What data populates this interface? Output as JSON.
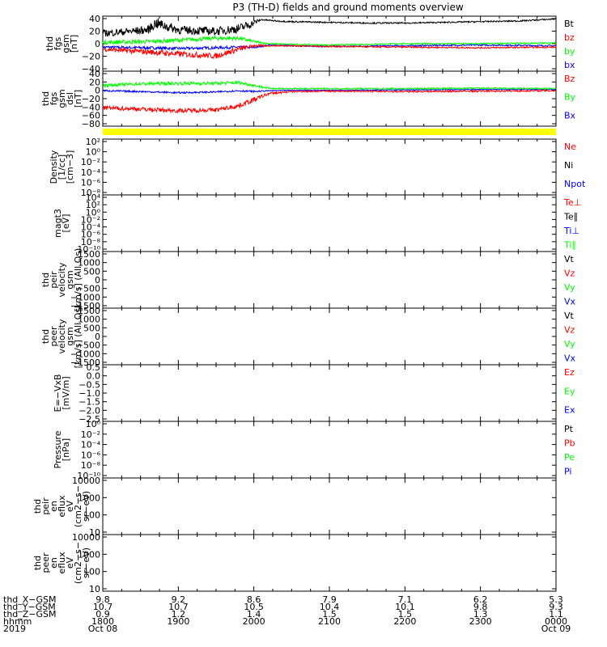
{
  "title": "P3 (TH-D) fields and ground moments overview",
  "colors": {
    "black": "#000000",
    "red": "#ff0000",
    "green": "#00ff00",
    "blue": "#0000ff",
    "yellow": "#ffff00"
  },
  "chart_data": [
    {
      "type": "line",
      "ylabel": [
        "thd",
        "fgs",
        "gsm",
        "[nT]"
      ],
      "ytick_labels": [
        "40",
        "20",
        "0",
        "−20",
        "−40"
      ],
      "ylim": [
        -40,
        40
      ],
      "scale": "linear",
      "legend": [
        {
          "label": "Bt",
          "color": "#000000"
        },
        {
          "label": "bz",
          "color": "#ff0000"
        },
        {
          "label": "by",
          "color": "#00ff00"
        },
        {
          "label": "bx",
          "color": "#0000ff"
        }
      ],
      "series": [
        {
          "name": "Bt",
          "color": "#000000",
          "x": [
            0,
            0.6,
            0.7,
            1.0,
            1.5,
            1.8,
            1.95,
            2.1,
            2.3,
            2.5,
            3.0,
            3.5,
            4.0,
            4.5,
            5.0,
            5.5,
            6.0
          ],
          "y": [
            15,
            20,
            30,
            20,
            18,
            22,
            28,
            35,
            33,
            32,
            31,
            30,
            30,
            31,
            32,
            33,
            36
          ],
          "noise": [
            5,
            6,
            8,
            6,
            6,
            7,
            6,
            1,
            1,
            1,
            1,
            1,
            1,
            1,
            1,
            1,
            1
          ]
        },
        {
          "name": "bz",
          "color": "#ff0000",
          "x": [
            0,
            0.6,
            1.0,
            1.5,
            1.8,
            2.0,
            2.2,
            2.5,
            3.0,
            4.0,
            5.0,
            6.0
          ],
          "y": [
            -8,
            -12,
            -15,
            -18,
            -8,
            -3,
            -3,
            -3,
            -4,
            -5,
            -6,
            -5
          ],
          "noise": [
            3,
            4,
            4,
            4,
            4,
            2,
            1,
            1,
            1,
            1,
            1,
            1
          ]
        },
        {
          "name": "by",
          "color": "#00ff00",
          "x": [
            0,
            0.6,
            1.0,
            1.5,
            1.8,
            2.0,
            2.2,
            2.5,
            3.0,
            4.0,
            5.0,
            6.0
          ],
          "y": [
            2,
            3,
            5,
            8,
            8,
            3,
            0,
            -1,
            -2,
            0,
            0,
            1
          ],
          "noise": [
            3,
            3,
            3,
            3,
            3,
            2,
            1,
            1,
            1,
            1,
            1,
            1
          ]
        },
        {
          "name": "bx",
          "color": "#0000ff",
          "x": [
            0,
            0.6,
            1.0,
            1.5,
            1.8,
            2.0,
            2.2,
            2.5,
            3.0,
            4.0,
            5.0,
            6.0
          ],
          "y": [
            -5,
            -6,
            -7,
            -6,
            -5,
            -6,
            -2,
            -3,
            -4,
            -3,
            -2,
            -3
          ],
          "noise": [
            2,
            2,
            2,
            2,
            2,
            1,
            1,
            1,
            1,
            1,
            1,
            1
          ]
        }
      ]
    },
    {
      "type": "line",
      "ylabel": [
        "thd",
        "fgs",
        "gsm",
        "dsl",
        "[nT]"
      ],
      "ytick_labels": [
        "40",
        "20",
        "0",
        "−20",
        "−40",
        "−60",
        "−80"
      ],
      "ylim": [
        -90,
        45
      ],
      "scale": "linear",
      "legend": [
        {
          "label": "Bz",
          "color": "#ff0000"
        },
        {
          "label": "By",
          "color": "#00ff00"
        },
        {
          "label": "Bx",
          "color": "#0000ff"
        }
      ],
      "series": [
        {
          "name": "Bz",
          "color": "#ff0000",
          "x": [
            0,
            0.5,
            1.0,
            1.5,
            1.8,
            2.0,
            2.2,
            2.5,
            3.0,
            4.0,
            5.0,
            6.0
          ],
          "y": [
            -45,
            -48,
            -52,
            -50,
            -40,
            -25,
            -10,
            -5,
            -4,
            -5,
            -4,
            -3
          ],
          "noise": [
            5,
            5,
            5,
            5,
            6,
            6,
            3,
            2,
            2,
            2,
            2,
            2
          ]
        },
        {
          "name": "By",
          "color": "#00ff00",
          "x": [
            0,
            0.5,
            1.0,
            1.5,
            1.8,
            2.0,
            2.2,
            2.5,
            3.0,
            4.0,
            5.0,
            6.0
          ],
          "y": [
            10,
            14,
            15,
            15,
            17,
            10,
            3,
            2,
            2,
            2,
            3,
            2
          ],
          "noise": [
            4,
            4,
            4,
            4,
            4,
            3,
            2,
            2,
            2,
            2,
            2,
            2
          ]
        },
        {
          "name": "Bx",
          "color": "#0000ff",
          "x": [
            0,
            0.5,
            1.0,
            1.5,
            1.8,
            2.0,
            2.2,
            2.5,
            3.0,
            4.0,
            5.0,
            6.0
          ],
          "y": [
            -3,
            -5,
            -8,
            -6,
            -3,
            -5,
            -3,
            -2,
            -2,
            -1,
            0,
            0
          ],
          "noise": [
            2,
            2,
            2,
            2,
            2,
            2,
            1,
            1,
            1,
            1,
            1,
            1
          ]
        }
      ]
    },
    {
      "type": "line",
      "ylabel": [
        "Density",
        "[1/cc]",
        "[cm−3]"
      ],
      "ytick_labels": [
        "10²",
        "10⁰",
        "10⁻²",
        "10⁻⁴",
        "10⁻⁶",
        "10⁻⁸"
      ],
      "ylim": [
        -9,
        3
      ],
      "scale": "log",
      "legend": [
        {
          "label": "Ne",
          "color": "#ff0000"
        },
        {
          "label": "Ni",
          "color": "#000000"
        },
        {
          "label": "Npot",
          "color": "#0000ff"
        }
      ],
      "series": []
    },
    {
      "type": "line",
      "ylabel": [
        "magt3",
        "[eV]"
      ],
      "ytick_labels": [
        "10⁴",
        "10²",
        "10⁰",
        "10⁻²",
        "10⁻⁴",
        "10⁻⁶",
        "10⁻⁸",
        "10⁻¹⁰"
      ],
      "ylim": [
        -11,
        5
      ],
      "scale": "log",
      "legend": [
        {
          "label": "Te⊥",
          "color": "#ff0000"
        },
        {
          "label": "Te∥",
          "color": "#000000"
        },
        {
          "label": "Ti⊥",
          "color": "#0000ff"
        },
        {
          "label": "Ti∥",
          "color": "#00ff00"
        }
      ],
      "series": []
    },
    {
      "type": "line",
      "ylabel": [
        "thd",
        "peir",
        "velocity",
        "gsm",
        "[km/s] (All Qs)"
      ],
      "ytick_labels": [
        "1500",
        "1000",
        "500",
        "0",
        "−500",
        "−1000",
        "−1500"
      ],
      "ylim": [
        -1500,
        1500
      ],
      "scale": "linear",
      "legend": [
        {
          "label": "Vt",
          "color": "#000000"
        },
        {
          "label": "Vz",
          "color": "#ff0000"
        },
        {
          "label": "Vy",
          "color": "#00ff00"
        },
        {
          "label": "Vx",
          "color": "#0000ff"
        }
      ],
      "series": []
    },
    {
      "type": "line",
      "ylabel": [
        "thd",
        "peer",
        "velocity",
        "gsm",
        "[km/s] (All Qs)"
      ],
      "ytick_labels": [
        "1500",
        "1000",
        "500",
        "0",
        "−500",
        "−1000",
        "−1500"
      ],
      "ylim": [
        -1500,
        1500
      ],
      "scale": "linear",
      "legend": [
        {
          "label": "Vt",
          "color": "#000000"
        },
        {
          "label": "Vz",
          "color": "#ff0000"
        },
        {
          "label": "Vy",
          "color": "#00ff00"
        },
        {
          "label": "Vx",
          "color": "#0000ff"
        }
      ],
      "series": []
    },
    {
      "type": "line",
      "ylabel": [
        "E=−VxB",
        "[mV/m]"
      ],
      "ytick_labels": [
        "0.5",
        "0.0",
        "−0.5",
        "−1.0",
        "−1.5",
        "−2.0",
        "−2.5"
      ],
      "ylim": [
        -2.5,
        0.5
      ],
      "scale": "linear",
      "legend": [
        {
          "label": "Ez",
          "color": "#ff0000"
        },
        {
          "label": "Ey",
          "color": "#00ff00"
        },
        {
          "label": "Ex",
          "color": "#0000ff"
        }
      ],
      "series": []
    },
    {
      "type": "line",
      "ylabel": [
        "Pressure",
        "[nPa]"
      ],
      "ytick_labels": [
        "10⁰",
        "10⁻²",
        "10⁻⁴",
        "10⁻⁶",
        "10⁻⁸",
        "10⁻¹⁰"
      ],
      "ylim": [
        -11,
        1
      ],
      "scale": "log",
      "legend": [
        {
          "label": "Pt",
          "color": "#000000"
        },
        {
          "label": "Pb",
          "color": "#ff0000"
        },
        {
          "label": "Pe",
          "color": "#00ff00"
        },
        {
          "label": "Pi",
          "color": "#0000ff"
        }
      ],
      "series": []
    },
    {
      "type": "heatmap",
      "ylabel": [
        "thd",
        "peir",
        "en",
        "eflux",
        "eV",
        "(cm2−s−",
        "sr−eV)"
      ],
      "ytick_labels": [
        "10000",
        "1000",
        "100",
        "10"
      ],
      "ylim": [
        0.9,
        4.3
      ],
      "scale": "log",
      "legend": [],
      "series": []
    },
    {
      "type": "heatmap",
      "ylabel": [
        "thd",
        "peer",
        "en",
        "eflux",
        "eV",
        "(cm2−s−",
        "sr−eV)"
      ],
      "ytick_labels": [
        "10000",
        "1000",
        "100",
        "10"
      ],
      "ylim": [
        0.9,
        4.3
      ],
      "scale": "log",
      "legend": [],
      "series": []
    }
  ],
  "xaxis": {
    "row_labels": [
      "thd_X−GSM",
      "thd_Y−GSM",
      "thd_Z−GSM",
      "hhmm",
      "2019"
    ],
    "columns": [
      [
        "9.8",
        "10.7",
        "0.9",
        "1800",
        "Oct 08"
      ],
      [
        "9.2",
        "10.7",
        "1.2",
        "1900",
        ""
      ],
      [
        "8.6",
        "10.5",
        "1.4",
        "2000",
        ""
      ],
      [
        "7.9",
        "10.4",
        "1.5",
        "2100",
        ""
      ],
      [
        "7.1",
        "10.1",
        "1.5",
        "2200",
        ""
      ],
      [
        "6.2",
        "9.8",
        "1.3",
        "2300",
        ""
      ],
      [
        "5.3",
        "9.3",
        "1.1",
        "0000",
        "Oct 09"
      ]
    ]
  }
}
